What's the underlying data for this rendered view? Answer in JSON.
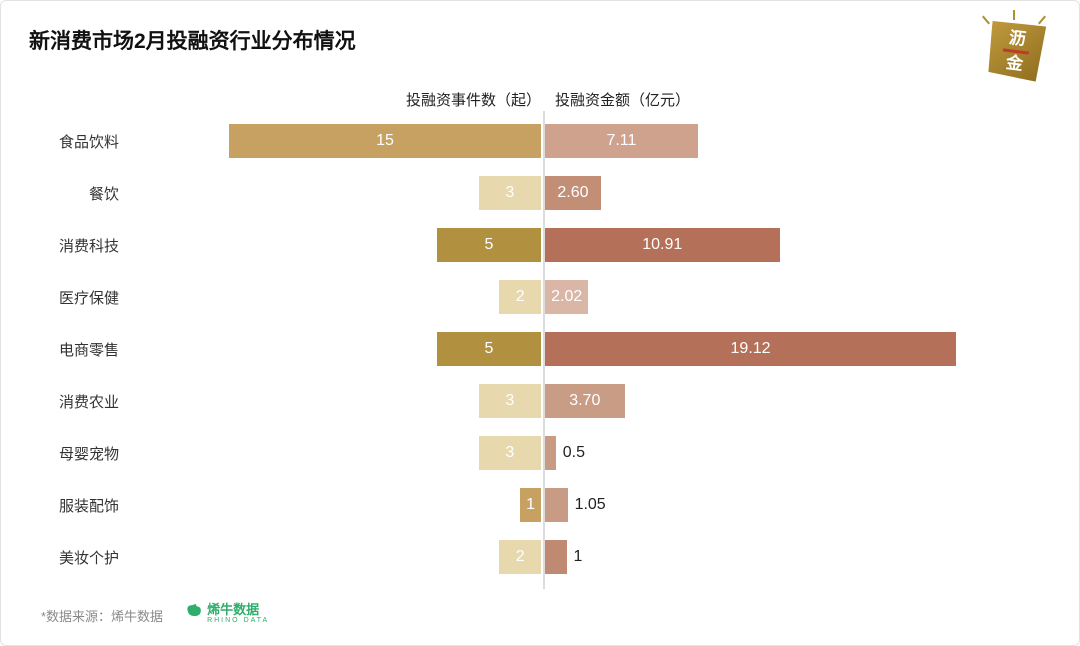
{
  "title": "新消费市场2月投融资行业分布情况",
  "logo": {
    "char_top": "沥",
    "char_bottom": "金"
  },
  "chart_data": {
    "type": "bar",
    "orientation": "diverging-horizontal",
    "left_header": "投融资事件数（起）",
    "right_header": "投融资金额（亿元）",
    "categories": [
      "食品饮料",
      "餐饮",
      "消费科技",
      "医疗保健",
      "电商零售",
      "消费农业",
      "母婴宠物",
      "服装配饰",
      "美妆个护"
    ],
    "series": [
      {
        "name": "投融资事件数（起）",
        "side": "left",
        "values": [
          15,
          3,
          5,
          2,
          5,
          3,
          3,
          1,
          2
        ],
        "labels": [
          "15",
          "3",
          "5",
          "2",
          "5",
          "3",
          "3",
          "1",
          "2"
        ],
        "colors": [
          "#C6A161",
          "#E7D8AE",
          "#B19040",
          "#E7D8AE",
          "#B19040",
          "#E7D8AE",
          "#E7D8AE",
          "#C6A161",
          "#E7D8AE"
        ],
        "value_range": [
          0,
          15
        ],
        "label_position": "inside"
      },
      {
        "name": "投融资金额（亿元）",
        "side": "right",
        "values": [
          7.11,
          2.6,
          10.91,
          2.02,
          19.12,
          3.7,
          0.5,
          1.05,
          1
        ],
        "labels": [
          "7.11",
          "2.60",
          "10.91",
          "2.02",
          "19.12",
          "3.70",
          "0.5",
          "1.05",
          "1"
        ],
        "colors": [
          "#CFA28D",
          "#C28E76",
          "#B47059",
          "#DAB6A6",
          "#B47059",
          "#C99C85",
          "#C89B84",
          "#C89B84",
          "#C08A72"
        ],
        "value_range": [
          0,
          19.12
        ],
        "label_outside": [
          false,
          false,
          false,
          false,
          false,
          false,
          true,
          true,
          true
        ]
      }
    ],
    "gridlines": "none",
    "center_axis": true
  },
  "footer": {
    "source": "*数据来源：烯牛数据",
    "brand_name": "烯牛数据",
    "brand_sub": "RHINO DATA"
  }
}
